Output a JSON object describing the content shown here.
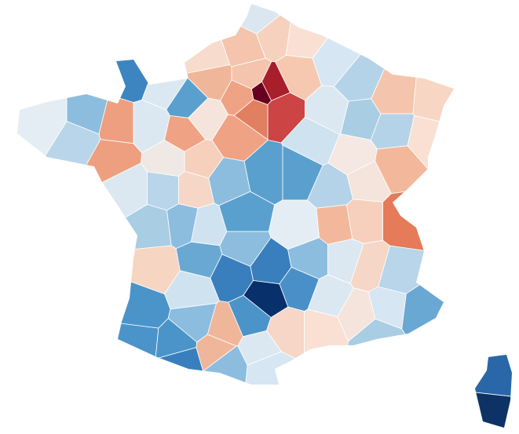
{
  "map": {
    "regions": [
      {
        "color": "#dbe7f0"
      },
      {
        "color": "#f6d2be"
      },
      {
        "color": "#f4c4ad"
      },
      {
        "color": "#f9e0d3"
      },
      {
        "color": "#d6e6f2"
      },
      {
        "color": "#f7dbcc"
      },
      {
        "color": "#3d85c0"
      },
      {
        "color": "#dce8f1"
      },
      {
        "color": "#5aa0cf"
      },
      {
        "color": "#f0b69a"
      },
      {
        "color": "#f4c4ad"
      },
      {
        "color": "#a81e2a"
      },
      {
        "color": "#67001f"
      },
      {
        "color": "#cc4444"
      },
      {
        "color": "#e08060"
      },
      {
        "color": "#f0a284"
      },
      {
        "color": "#f0a284"
      },
      {
        "color": "#f6c8b0"
      },
      {
        "color": "#b5d3e8"
      },
      {
        "color": "#f4c4ad"
      },
      {
        "color": "#f8d6c4"
      },
      {
        "color": "#f9e0d3"
      },
      {
        "color": "#b5d3e8"
      },
      {
        "color": "#f3b89c"
      },
      {
        "color": "#a9cde3"
      },
      {
        "color": "#dce8f1"
      },
      {
        "color": "#cfe2f0"
      },
      {
        "color": "#f5e7e1"
      },
      {
        "color": "#e4edf3"
      },
      {
        "color": "#8cbdde"
      },
      {
        "color": "#b8d5ea"
      },
      {
        "color": "#ee9f7f"
      },
      {
        "color": "#ee9f7f"
      },
      {
        "color": "#dce8f1"
      },
      {
        "color": "#f0a284"
      },
      {
        "color": "#f5e4dc"
      },
      {
        "color": "#f6d0bd"
      },
      {
        "color": "#f0e8e4"
      },
      {
        "color": "#dce8f1"
      },
      {
        "color": "#b8d5ea"
      },
      {
        "color": "#f6d6c6"
      },
      {
        "color": "#8cbdde"
      },
      {
        "color": "#5aa0cf"
      },
      {
        "color": "#5aa0cf"
      },
      {
        "color": "#b5d3e8"
      },
      {
        "color": "#f5e4dc"
      },
      {
        "color": "#e57b58"
      },
      {
        "color": "#f6d0bd"
      },
      {
        "color": "#f3b89c"
      },
      {
        "color": "#e4edf3"
      },
      {
        "color": "#5aa0cf"
      },
      {
        "color": "#cfe2f0"
      },
      {
        "color": "#a9cde3"
      },
      {
        "color": "#8cbdde"
      },
      {
        "color": "#f7d5c3"
      },
      {
        "color": "#6aa8d4"
      },
      {
        "color": "#8cbdde"
      },
      {
        "color": "#3a7fbd"
      },
      {
        "color": "#8cbdde"
      },
      {
        "color": "#dce8f1"
      },
      {
        "color": "#f6d6c6"
      },
      {
        "color": "#b8d5ea"
      },
      {
        "color": "#6aa8d4"
      },
      {
        "color": "#d6e6f2"
      },
      {
        "color": "#f5e4dc"
      },
      {
        "color": "#3a7fbd"
      },
      {
        "color": "#08306b"
      },
      {
        "color": "#4a90c8"
      },
      {
        "color": "#dce8f1"
      },
      {
        "color": "#cfe2f0"
      },
      {
        "color": "#4a94c9"
      },
      {
        "color": "#8cbdde"
      },
      {
        "color": "#f0b69a"
      },
      {
        "color": "#4a94c9"
      },
      {
        "color": "#f6d6c6"
      },
      {
        "color": "#f9e0d3"
      },
      {
        "color": "#a9cde3"
      },
      {
        "color": "#4a94c9"
      },
      {
        "color": "#4a94c9"
      },
      {
        "color": "#3a7fbd"
      },
      {
        "color": "#f0b69a"
      },
      {
        "color": "#8cbdde"
      },
      {
        "color": "#dce8f1"
      },
      {
        "color": "#d6e6f2"
      },
      {
        "color": "#2a67a8"
      },
      {
        "color": "#0d3366"
      }
    ]
  }
}
